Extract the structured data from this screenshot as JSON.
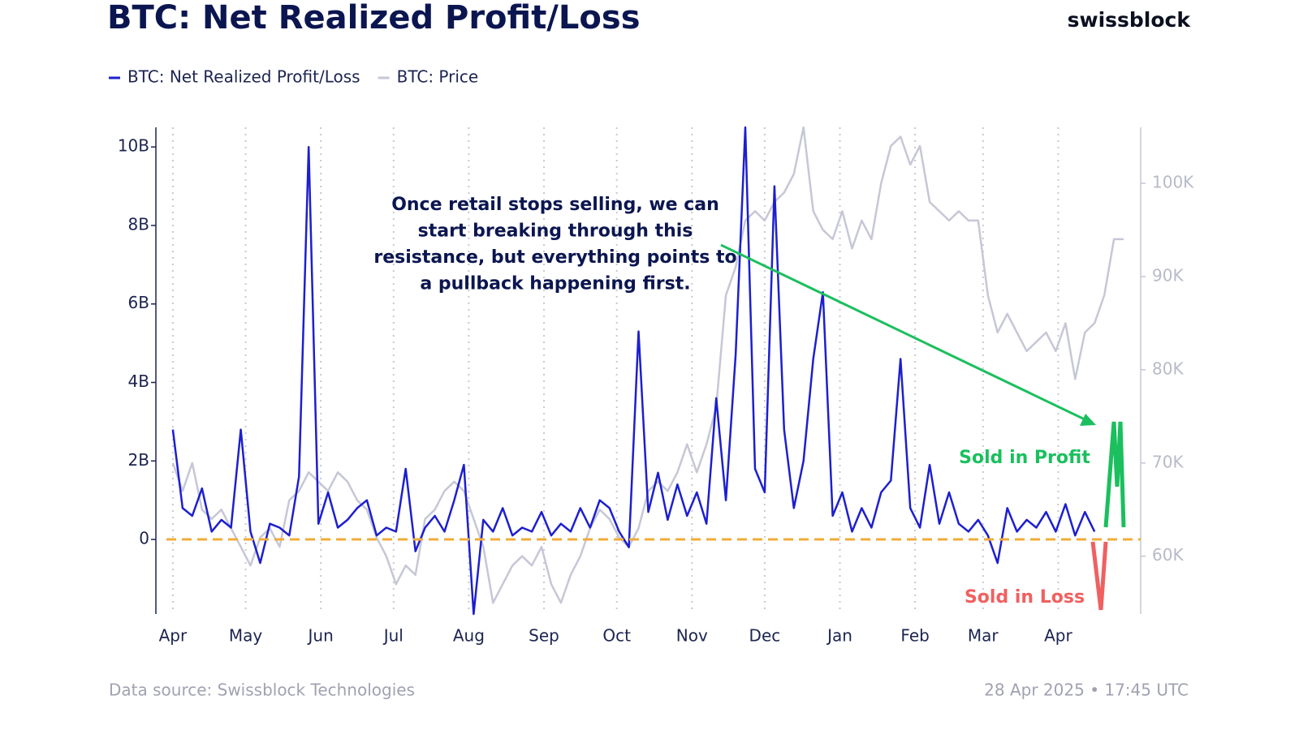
{
  "chart_data": {
    "type": "line",
    "title": "BTC: Net Realized Profit/Loss",
    "brand": "swissblock",
    "source": "Data source: Swissblock Technologies",
    "timestamp": "28 Apr 2025 • 17:45 UTC",
    "annotation": [
      "Once retail stops selling, we can",
      "start breaking through this",
      "resistance, but everything points to",
      "a pullback happening first."
    ],
    "labels": {
      "profit": "Sold in Profit",
      "loss": "Sold in Loss"
    },
    "xlim": [
      -7,
      399
    ],
    "xticks": [
      {
        "value": 0,
        "label": "Apr"
      },
      {
        "value": 30,
        "label": "May"
      },
      {
        "value": 61,
        "label": "Jun"
      },
      {
        "value": 91,
        "label": "Jul"
      },
      {
        "value": 122,
        "label": "Aug"
      },
      {
        "value": 153,
        "label": "Sep"
      },
      {
        "value": 183,
        "label": "Oct"
      },
      {
        "value": 214,
        "label": "Nov"
      },
      {
        "value": 244,
        "label": "Dec"
      },
      {
        "value": 275,
        "label": "Jan"
      },
      {
        "value": 306,
        "label": "Feb"
      },
      {
        "value": 334,
        "label": "Mar"
      },
      {
        "value": 365,
        "label": "Apr"
      }
    ],
    "ylim": [
      -1.9,
      10.5
    ],
    "yticks": [
      {
        "value": 10,
        "label": "10B"
      },
      {
        "value": 8,
        "label": "8B"
      },
      {
        "value": 6,
        "label": "6B"
      },
      {
        "value": 4,
        "label": "4B"
      },
      {
        "value": 2,
        "label": "2B"
      },
      0
    ],
    "y2lim": [
      53.8,
      106
    ],
    "y2ticks": [
      {
        "value": 100,
        "label": "100K"
      },
      {
        "value": 90,
        "label": "90K"
      },
      {
        "value": 80,
        "label": "80K"
      },
      {
        "value": 70,
        "label": "70K"
      },
      {
        "value": 60,
        "label": "60K"
      }
    ],
    "grid": true,
    "series": [
      {
        "name": "BTC: Price",
        "color": "#c6c7d6",
        "axis": "y2",
        "x": [
          0,
          4,
          8,
          12,
          16,
          20,
          24,
          28,
          32,
          36,
          40,
          44,
          48,
          52,
          56,
          60,
          64,
          68,
          72,
          76,
          80,
          84,
          88,
          92,
          96,
          100,
          104,
          108,
          112,
          116,
          120,
          124,
          128,
          132,
          136,
          140,
          144,
          148,
          152,
          156,
          160,
          164,
          168,
          172,
          176,
          180,
          184,
          188,
          192,
          196,
          200,
          204,
          208,
          212,
          216,
          220,
          224,
          228,
          232,
          236,
          240,
          244,
          248,
          252,
          256,
          260,
          264,
          268,
          272,
          276,
          280,
          284,
          288,
          292,
          296,
          300,
          304,
          308,
          312,
          316,
          320,
          324,
          328,
          332,
          336,
          340,
          344,
          348,
          352,
          356,
          360,
          364,
          368,
          372,
          376,
          380,
          384,
          388,
          392
        ],
        "values": [
          70,
          67,
          70,
          65,
          64,
          65,
          63,
          61,
          59,
          62,
          63,
          61,
          66,
          67,
          69,
          68,
          67,
          69,
          68,
          66,
          65,
          62,
          60,
          57,
          59,
          58,
          64,
          65,
          67,
          68,
          67,
          64,
          61,
          55,
          57,
          59,
          60,
          59,
          61,
          57,
          55,
          58,
          60,
          63,
          65,
          64,
          62,
          61,
          63,
          67,
          68,
          67,
          69,
          72,
          69,
          72,
          76,
          88,
          91,
          96,
          97,
          96,
          98,
          99,
          101,
          106,
          97,
          95,
          94,
          97,
          93,
          96,
          94,
          100,
          104,
          105,
          102,
          104,
          98,
          97,
          96,
          97,
          96,
          96,
          88,
          84,
          86,
          84,
          82,
          83,
          84,
          82,
          85,
          79,
          84,
          85,
          88,
          94,
          94
        ]
      },
      {
        "name": "BTC: Net Realized Profit/Loss",
        "color": "#1d1fcf",
        "axis": "y",
        "x": [
          0,
          4,
          8,
          12,
          16,
          20,
          24,
          28,
          32,
          36,
          40,
          44,
          48,
          52,
          56,
          60,
          64,
          68,
          72,
          76,
          80,
          84,
          88,
          92,
          96,
          100,
          104,
          108,
          112,
          116,
          120,
          124,
          128,
          132,
          136,
          140,
          144,
          148,
          152,
          156,
          160,
          164,
          168,
          172,
          176,
          180,
          184,
          188,
          192,
          196,
          200,
          204,
          208,
          212,
          216,
          220,
          224,
          228,
          232,
          236,
          240,
          244,
          248,
          252,
          256,
          260,
          264,
          268,
          272,
          276,
          280,
          284,
          288,
          292,
          296,
          300,
          304,
          308,
          312,
          316,
          320,
          324,
          328,
          332,
          336,
          340,
          344,
          348,
          352,
          356,
          360,
          364,
          368,
          372,
          376,
          380
        ],
        "values": [
          2.8,
          0.8,
          0.6,
          1.3,
          0.2,
          0.5,
          0.3,
          2.8,
          0.2,
          -0.6,
          0.4,
          0.3,
          0.1,
          1.6,
          10.0,
          0.4,
          1.2,
          0.3,
          0.5,
          0.8,
          1.0,
          0.1,
          0.3,
          0.2,
          1.8,
          -0.3,
          0.3,
          0.6,
          0.2,
          1.0,
          1.9,
          -1.9,
          0.5,
          0.2,
          0.8,
          0.1,
          0.3,
          0.2,
          0.7,
          0.1,
          0.4,
          0.2,
          0.8,
          0.3,
          1.0,
          0.8,
          0.2,
          -0.2,
          5.3,
          0.7,
          1.7,
          0.5,
          1.4,
          0.6,
          1.2,
          0.4,
          3.6,
          1.0,
          4.7,
          10.5,
          1.8,
          1.2,
          9.0,
          2.8,
          0.8,
          2.0,
          4.6,
          6.3,
          0.6,
          1.2,
          0.2,
          0.8,
          0.3,
          1.2,
          1.5,
          4.6,
          0.8,
          0.3,
          1.9,
          0.4,
          1.2,
          0.4,
          0.2,
          0.5,
          0.1,
          -0.6,
          0.8,
          0.2,
          0.5,
          0.3,
          0.7,
          0.2,
          0.9,
          0.1,
          0.7,
          0.2
        ]
      }
    ]
  }
}
